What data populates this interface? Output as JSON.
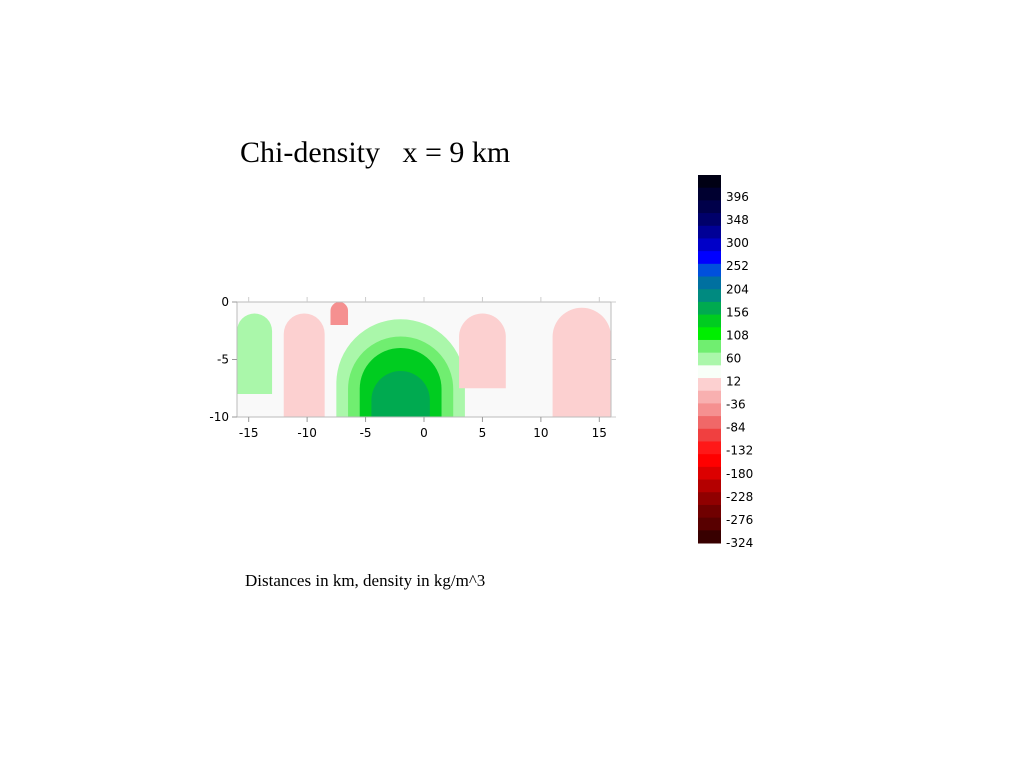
{
  "chart_data": {
    "type": "heatmap",
    "title": "Chi-density   x = 9 km",
    "caption": "Distances in km, density in kg/m^3",
    "xlim": [
      -16,
      16
    ],
    "ylim": [
      -10,
      0
    ],
    "xticks": [
      -15,
      -10,
      -5,
      0,
      5,
      10,
      15
    ],
    "yticks": [
      0,
      -5,
      -10
    ],
    "colorbar": {
      "levels": [
        396,
        348,
        300,
        252,
        204,
        156,
        108,
        60,
        12,
        -36,
        -84,
        -132,
        -180,
        -228,
        -276,
        -324
      ],
      "colors_top_to_bottom": [
        "#000014",
        "#000030",
        "#00004a",
        "#00006a",
        "#000096",
        "#0000c8",
        "#0000ff",
        "#0050dc",
        "#0070a0",
        "#008a80",
        "#00aa50",
        "#00cc20",
        "#00ee00",
        "#70ee70",
        "#aaf7aa",
        "#f8fff8",
        "#fcd0d0",
        "#f8b0b0",
        "#f59090",
        "#f06868",
        "#f04040",
        "#ff1818",
        "#ff0000",
        "#dc0000",
        "#b40000",
        "#900000",
        "#700000",
        "#580000",
        "#380000"
      ]
    },
    "regions": [
      {
        "level": 12,
        "color": "#f9f9f9",
        "shape": "background"
      },
      {
        "level": 60,
        "color": "#aaf7aa",
        "x_range": [
          -16,
          -13
        ],
        "y_range": [
          -8,
          -1
        ]
      },
      {
        "level": 60,
        "color": "#aaf7aa",
        "x_range": [
          -7.5,
          3.5
        ],
        "y_range": [
          -10,
          -1.5
        ]
      },
      {
        "level": 60,
        "color": "#70ee70",
        "x_range": [
          -6.5,
          2.5
        ],
        "y_range": [
          -10,
          -3
        ]
      },
      {
        "level": 108,
        "color": "#00cc20",
        "x_range": [
          -5.5,
          1.5
        ],
        "y_range": [
          -10,
          -4
        ]
      },
      {
        "level": 156,
        "color": "#00aa50",
        "x_range": [
          -4.5,
          0.5
        ],
        "y_range": [
          -10,
          -6
        ]
      },
      {
        "level": -36,
        "color": "#fcd0d0",
        "x_range": [
          -12,
          -8.5
        ],
        "y_range": [
          -10,
          -1
        ]
      },
      {
        "level": -36,
        "color": "#fcd0d0",
        "x_range": [
          3,
          7
        ],
        "y_range": [
          -7.5,
          -1
        ]
      },
      {
        "level": -36,
        "color": "#fcd0d0",
        "x_range": [
          11,
          16
        ],
        "y_range": [
          -10,
          -0.5
        ]
      },
      {
        "level": -84,
        "color": "#f59090",
        "x_range": [
          -8,
          -6.5
        ],
        "y_range": [
          -2,
          0
        ]
      }
    ]
  }
}
